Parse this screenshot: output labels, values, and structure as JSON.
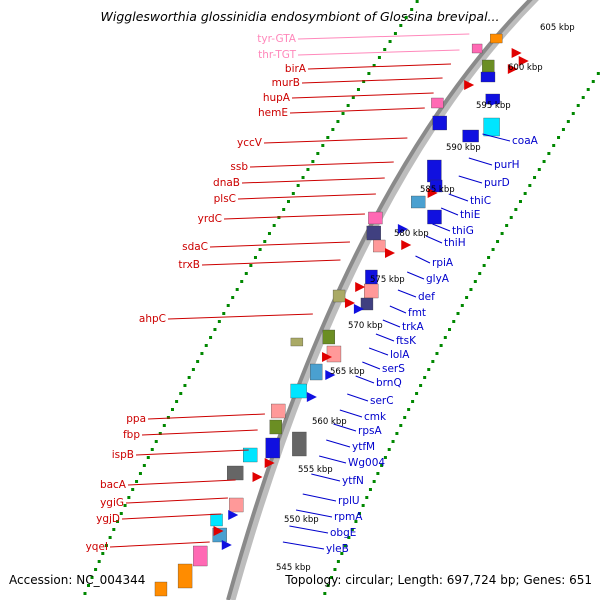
{
  "title": "Wigglesworthia glossinidia endosymbiont of Glossina brevipal...",
  "footer": {
    "accession": "Accession: NC_004344",
    "topology": "Topology: circular; Length: 697,724 bp; Genes: 651"
  },
  "colors": {
    "left_label": "#cc0000",
    "trna_label": "#ff88bb",
    "right_label": "#0000cc",
    "backbone": "#999999",
    "dots": "#008800"
  },
  "scale_ticks": [
    "605 kbp",
    "600 kbp",
    "595 kbp",
    "590 kbp",
    "585 kbp",
    "580 kbp",
    "575 kbp",
    "570 kbp",
    "565 kbp",
    "560 kbp",
    "555 kbp",
    "550 kbp",
    "545 kbp"
  ],
  "left_labels": [
    {
      "text": "tyr-GTA",
      "trna": true
    },
    {
      "text": "thr-TGT",
      "trna": true
    },
    {
      "text": "birA"
    },
    {
      "text": "murB"
    },
    {
      "text": "hupA"
    },
    {
      "text": "hemE"
    },
    {
      "text": "yccV"
    },
    {
      "text": "ssb"
    },
    {
      "text": "dnaB"
    },
    {
      "text": "plsC"
    },
    {
      "text": "yrdC"
    },
    {
      "text": "sdaC"
    },
    {
      "text": "trxB"
    },
    {
      "text": "ahpC"
    },
    {
      "text": "ppa"
    },
    {
      "text": "fbp"
    },
    {
      "text": "ispB"
    },
    {
      "text": "bacA"
    },
    {
      "text": "ygiG"
    },
    {
      "text": "ygjD"
    },
    {
      "text": "yqeI"
    }
  ],
  "right_labels": [
    "coaA",
    "purH",
    "purD",
    "thiC",
    "thiE",
    "thiG",
    "thiH",
    "rpiA",
    "glyA",
    "def",
    "fmt",
    "trkA",
    "ftsK",
    "lolA",
    "serS",
    "brnQ",
    "serC",
    "cmk",
    "rpsA",
    "ytfM",
    "Wg004",
    "ytfN",
    "rplU",
    "rpmA",
    "obgE",
    "yleB"
  ]
}
